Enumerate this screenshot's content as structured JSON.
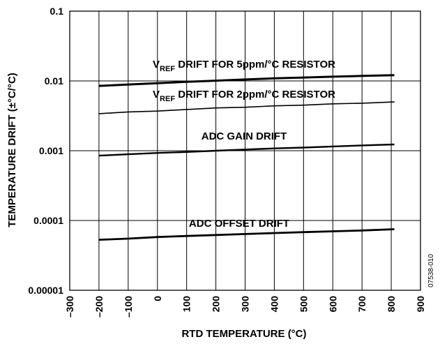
{
  "chart_data": {
    "type": "line",
    "title": "",
    "xlabel": "RTD TEMPERATURE (°C)",
    "ylabel": "TEMPERATURE DRIFT (±°C/°C)",
    "y_scale": "log",
    "xlim": [
      -300,
      900
    ],
    "ylim": [
      1e-05,
      0.1
    ],
    "grid": true,
    "x_ticks": [
      -300,
      -200,
      -100,
      0,
      100,
      200,
      300,
      400,
      500,
      600,
      700,
      800,
      900
    ],
    "x_tick_labels": [
      "–300",
      "–200",
      "–100",
      "0",
      "100",
      "200",
      "300",
      "400",
      "500",
      "600",
      "700",
      "800",
      "900"
    ],
    "y_ticks": [
      1e-05,
      0.0001,
      0.001,
      0.01,
      0.1
    ],
    "y_tick_labels": [
      "0.00001",
      "0.0001",
      "0.001",
      "0.01",
      "0.1"
    ],
    "series": [
      {
        "x": [
          -200,
          -100,
          0,
          100,
          200,
          300,
          400,
          500,
          600,
          700,
          810
        ],
        "y": [
          0.0085,
          0.0089,
          0.0093,
          0.0097,
          0.0101,
          0.0105,
          0.0109,
          0.0112,
          0.0115,
          0.0118,
          0.0121
        ]
      },
      {
        "x": [
          -200,
          -100,
          0,
          100,
          200,
          300,
          400,
          500,
          600,
          700,
          810
        ],
        "y": [
          0.0034,
          0.0036,
          0.0037,
          0.0039,
          0.0041,
          0.0042,
          0.0044,
          0.0045,
          0.0047,
          0.0048,
          0.005
        ]
      },
      {
        "x": [
          -200,
          -100,
          0,
          100,
          200,
          300,
          400,
          500,
          600,
          700,
          810
        ],
        "y": [
          0.00085,
          0.00089,
          0.00093,
          0.00096,
          0.001,
          0.00104,
          0.00108,
          0.00111,
          0.00115,
          0.00119,
          0.00123
        ]
      },
      {
        "x": [
          -200,
          -100,
          0,
          100,
          200,
          300,
          400,
          500,
          600,
          700,
          810
        ],
        "y": [
          5.3e-05,
          5.5e-05,
          5.8e-05,
          6e-05,
          6.2e-05,
          6.4e-05,
          6.6e-05,
          6.8e-05,
          7e-05,
          7.2e-05,
          7.5e-05
        ]
      }
    ],
    "annotations": [
      {
        "main": "V",
        "sub": "REF",
        "rest": " DRIFT FOR 5ppm/°C RESISTOR"
      },
      {
        "main": "V",
        "sub": "REF",
        "rest": " DRIFT FOR 2ppm/°C RESISTOR"
      },
      {
        "main": "ADC GAIN DRIFT",
        "sub": "",
        "rest": ""
      },
      {
        "main": "ADC OFFSET DRIFT",
        "sub": "",
        "rest": ""
      }
    ],
    "figure_id": "07538-010"
  }
}
